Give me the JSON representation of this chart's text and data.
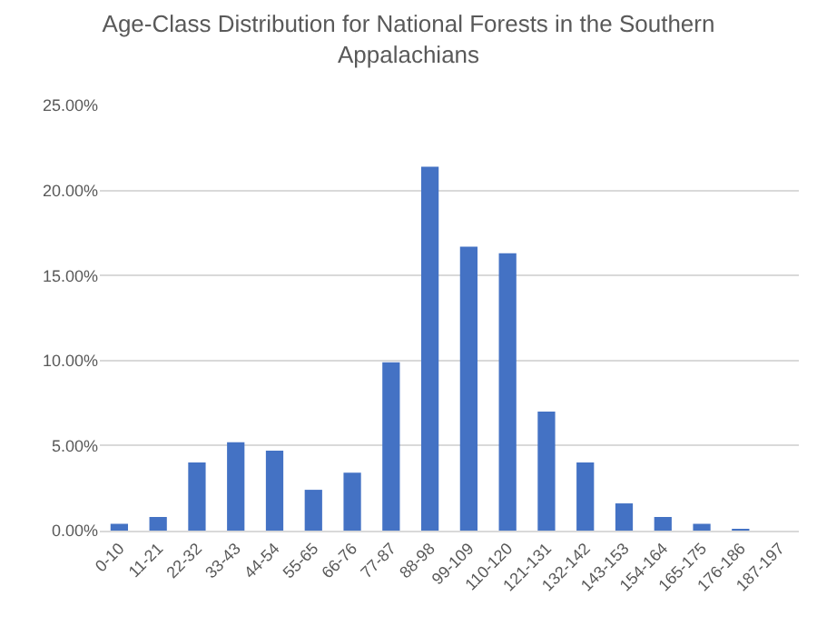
{
  "chart_data": {
    "type": "bar",
    "title": "Age-Class Distribution for National Forests in the Southern Appalachians",
    "categories": [
      "0-10",
      "11-21",
      "22-32",
      "33-43",
      "44-54",
      "55-65",
      "66-76",
      "77-87",
      "88-98",
      "99-109",
      "110-120",
      "121-131",
      "132-142",
      "143-153",
      "154-164",
      "165-175",
      "176-186",
      "187-197"
    ],
    "series": [
      {
        "color": "#4472c4",
        "values": [
          0.4,
          0.8,
          4.0,
          5.2,
          4.7,
          2.4,
          3.4,
          9.9,
          21.4,
          16.7,
          16.3,
          7.0,
          4.0,
          1.6,
          0.8,
          0.4,
          0.1,
          0
        ]
      }
    ],
    "ylim": [
      0,
      25
    ],
    "yticks": [
      {
        "value": 0,
        "label": "0.00%"
      },
      {
        "value": 5,
        "label": "5.00%"
      },
      {
        "value": 10,
        "label": "10.00%"
      },
      {
        "value": 15,
        "label": "15.00%"
      },
      {
        "value": 20,
        "label": "20.00%"
      },
      {
        "value": 25,
        "label": "25.00%"
      }
    ],
    "grid": "y"
  }
}
